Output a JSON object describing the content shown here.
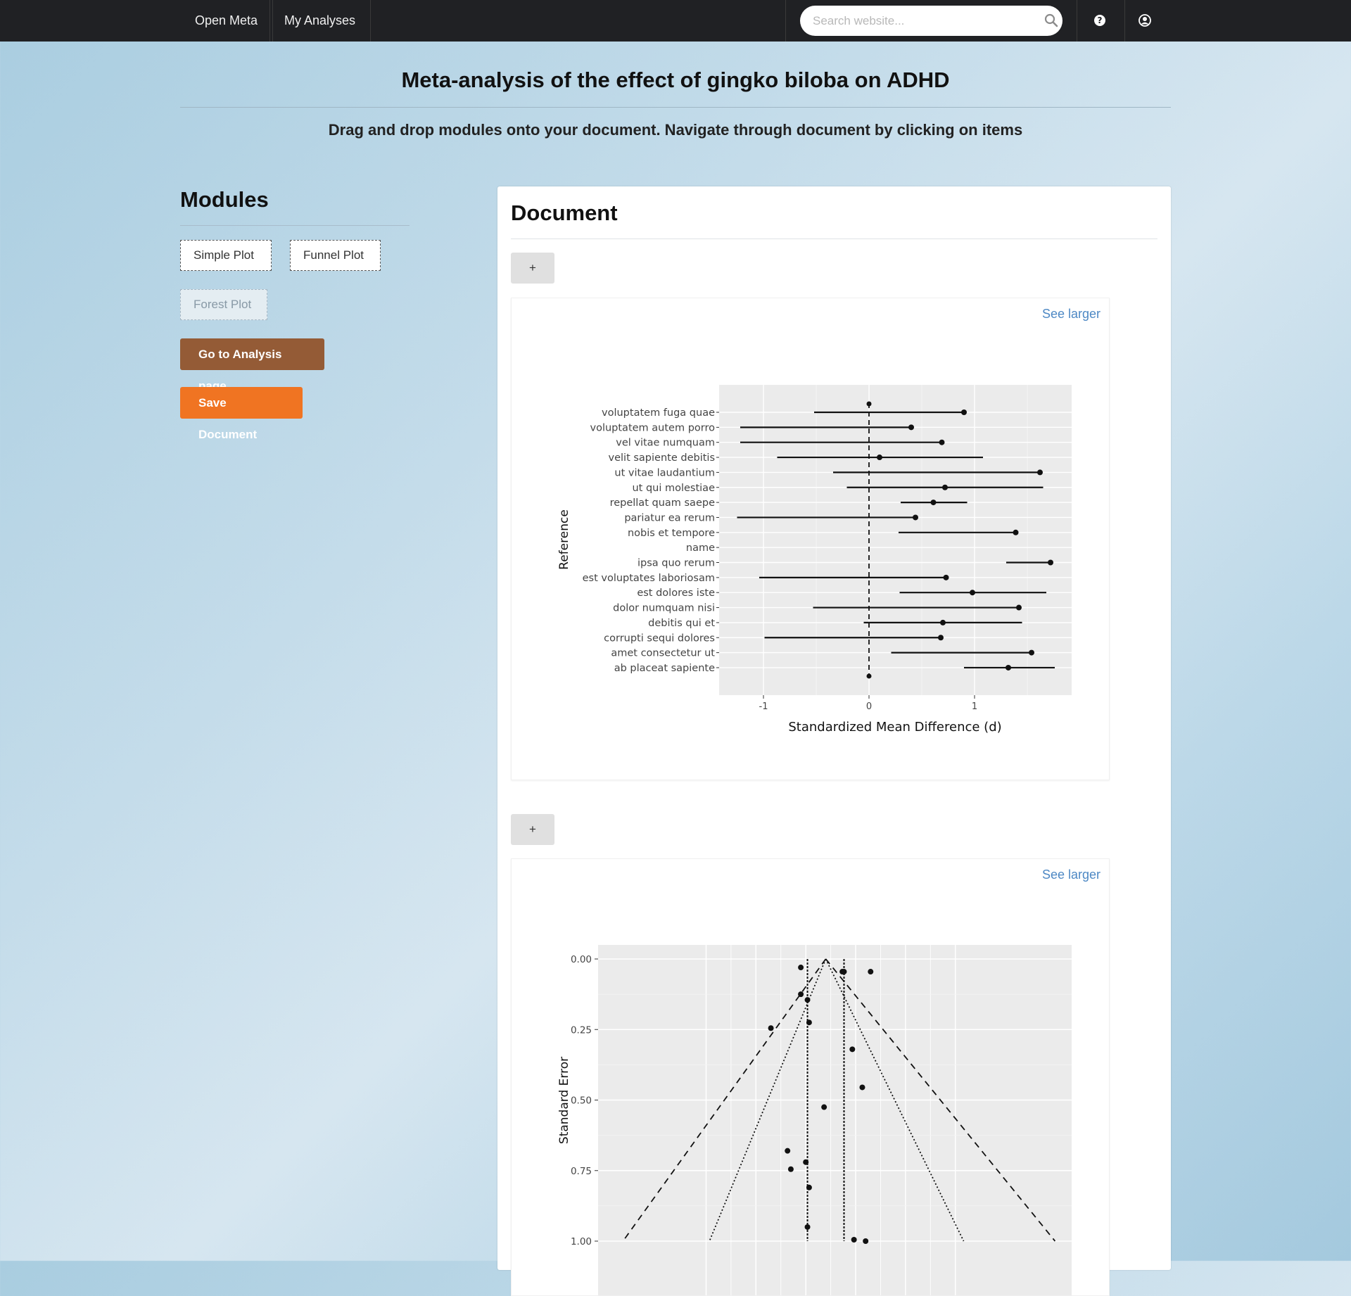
{
  "nav": {
    "brand": "Open Meta",
    "my_analyses": "My Analyses",
    "search_placeholder": "Search website..."
  },
  "page": {
    "title": "Meta-analysis of the effect of gingko biloba on ADHD",
    "subtitle": "Drag and drop modules onto your document. Navigate through document by clicking on items"
  },
  "modules": {
    "title": "Modules",
    "items": [
      "Simple Plot",
      "Funnel Plot",
      "Forest Plot"
    ],
    "analysis_button": "Go to Analysis page",
    "save_button": "Save Document"
  },
  "document": {
    "title": "Document",
    "add_label": "+",
    "see_larger": "See larger"
  },
  "chart_data": [
    {
      "type": "scatter",
      "subtype": "forest",
      "xlabel": "Standardized Mean Difference (d)",
      "ylabel": "Reference",
      "xlim": [
        -1.42,
        1.92
      ],
      "x_ticks": [
        -1,
        0,
        1
      ],
      "reference_line": 0,
      "grid": true,
      "rows": [
        {
          "label": "voluptatem fuga quae",
          "est": 0.9,
          "lo": -0.52,
          "hi": 0.9
        },
        {
          "label": "voluptatem autem porro",
          "est": 0.4,
          "lo": -1.22,
          "hi": 0.4
        },
        {
          "label": "vel vitae numquam",
          "est": 0.69,
          "lo": -1.22,
          "hi": 0.69
        },
        {
          "label": "velit sapiente debitis",
          "est": 0.1,
          "lo": -0.87,
          "hi": 1.08
        },
        {
          "label": "ut vitae laudantium",
          "est": 1.62,
          "lo": -0.34,
          "hi": 1.62
        },
        {
          "label": "ut qui molestiae",
          "est": 0.72,
          "lo": -0.21,
          "hi": 1.65
        },
        {
          "label": "repellat quam saepe",
          "est": 0.61,
          "lo": 0.3,
          "hi": 0.93
        },
        {
          "label": "pariatur ea rerum",
          "est": 0.44,
          "lo": -1.25,
          "hi": 0.44
        },
        {
          "label": "nobis et tempore",
          "est": 1.39,
          "lo": 0.28,
          "hi": 1.39
        },
        {
          "label": "name",
          "est": null,
          "lo": null,
          "hi": null
        },
        {
          "label": "ipsa quo rerum",
          "est": 1.72,
          "lo": 1.3,
          "hi": 1.72
        },
        {
          "label": "est voluptates laboriosam",
          "est": 0.73,
          "lo": -1.04,
          "hi": 0.73
        },
        {
          "label": "est dolores iste",
          "est": 0.98,
          "lo": 0.29,
          "hi": 1.68
        },
        {
          "label": "dolor numquam nisi",
          "est": 1.42,
          "lo": -0.53,
          "hi": 1.42
        },
        {
          "label": "debitis qui et",
          "est": 0.7,
          "lo": -0.05,
          "hi": 1.45
        },
        {
          "label": "corrupti sequi dolores",
          "est": 0.68,
          "lo": -0.99,
          "hi": 0.68
        },
        {
          "label": "amet consectetur ut",
          "est": 1.54,
          "lo": 0.21,
          "hi": 1.54
        },
        {
          "label": "ab placeat sapiente",
          "est": 1.32,
          "lo": 0.9,
          "hi": 1.76
        }
      ],
      "extra_points": [
        0,
        0
      ]
    },
    {
      "type": "scatter",
      "subtype": "funnel",
      "ylabel": "Standard Error",
      "y_ticks": [
        "0.00",
        "0.25",
        "0.50",
        "0.75",
        "1.00"
      ],
      "ylim": [
        0,
        1.05
      ],
      "xlim": [
        -1.45,
        1.4
      ],
      "y_reversed": true,
      "grid": true,
      "apex": -0.08,
      "vlines": [
        -0.19,
        0.03
      ],
      "points": [
        {
          "x": -0.23,
          "y": 0.03
        },
        {
          "x": 0.03,
          "y": 0.045
        },
        {
          "x": 0.02,
          "y": 0.045
        },
        {
          "x": 0.19,
          "y": 0.045
        },
        {
          "x": -0.23,
          "y": 0.125
        },
        {
          "x": -0.19,
          "y": 0.145
        },
        {
          "x": -0.18,
          "y": 0.225
        },
        {
          "x": -0.41,
          "y": 0.245
        },
        {
          "x": 0.08,
          "y": 0.32
        },
        {
          "x": 0.14,
          "y": 0.455
        },
        {
          "x": -0.09,
          "y": 0.525
        },
        {
          "x": -0.31,
          "y": 0.68
        },
        {
          "x": -0.2,
          "y": 0.72
        },
        {
          "x": -0.29,
          "y": 0.745
        },
        {
          "x": -0.18,
          "y": 0.81
        },
        {
          "x": -0.19,
          "y": 0.95
        },
        {
          "x": 0.09,
          "y": 0.995
        },
        {
          "x": 0.16,
          "y": 1.0
        }
      ]
    }
  ]
}
